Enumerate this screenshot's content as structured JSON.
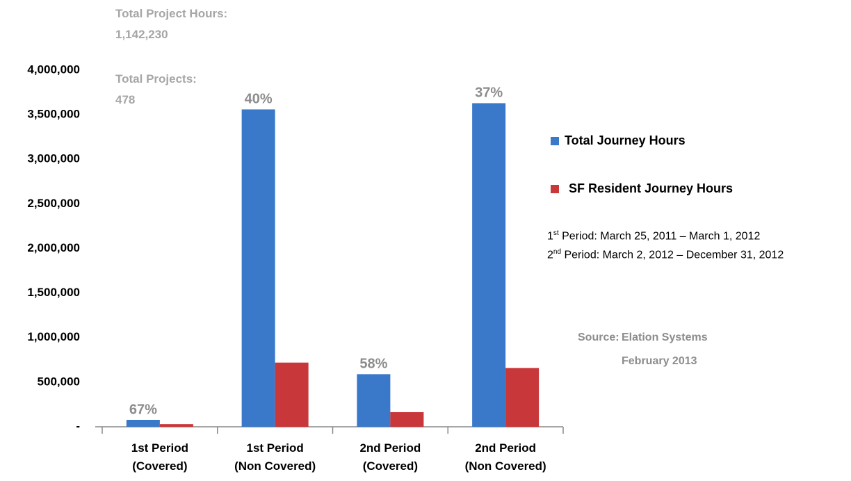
{
  "chart_data": {
    "type": "bar",
    "categories": [
      "1st Period\n(Covered)",
      "1st Period\n(Non Covered)",
      "2nd Period\n(Covered)",
      "2nd Period\n(Non Covered)"
    ],
    "series": [
      {
        "name": "Total Journey Hours",
        "color": "#3a78c9",
        "values": [
          78000,
          3560000,
          590000,
          3630000
        ]
      },
      {
        "name": "SF Resident Journey Hours",
        "color": "#c8383a",
        "values": [
          30000,
          720000,
          164000,
          660000
        ]
      }
    ],
    "percent_labels": [
      "67%",
      "40%",
      "58%",
      "37%"
    ],
    "ylim": [
      0,
      4000000
    ],
    "yticks": [
      {
        "value": 0,
        "label": "-"
      },
      {
        "value": 500000,
        "label": "500,000"
      },
      {
        "value": 1000000,
        "label": "1,000,000"
      },
      {
        "value": 1500000,
        "label": "1,500,000"
      },
      {
        "value": 2000000,
        "label": "2,000,000"
      },
      {
        "value": 2500000,
        "label": "2,500,000"
      },
      {
        "value": 3000000,
        "label": "3,000,000"
      },
      {
        "value": 3500000,
        "label": "3,500,000"
      },
      {
        "value": 4000000,
        "label": "4,000,000"
      }
    ],
    "grid": false,
    "legend": "right",
    "totals": [
      {
        "label": "Total Project Hours:",
        "value": "1,142,230"
      },
      {
        "label": "Total Projects:",
        "value": "478"
      }
    ],
    "period_notes": [
      {
        "num": "1",
        "sup": "st",
        "text": " Period: March 25, 2011 – March 1, 2012"
      },
      {
        "num": "2",
        "sup": "nd",
        "text": " Period: March 2, 2012 – December 31, 2012"
      }
    ],
    "source": {
      "label": "Source:",
      "name": "Elation Systems",
      "date": "February 2013"
    }
  }
}
